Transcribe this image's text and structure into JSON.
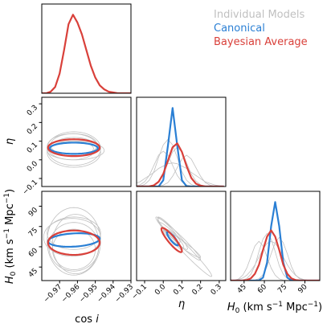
{
  "chart_data": {
    "type": "corner",
    "series": [
      {
        "name": "Individual Models",
        "color": "#c0c0c0"
      },
      {
        "name": "Canonical",
        "color": "#2a7fd4"
      },
      {
        "name": "Bayesian Average",
        "color": "#d9403a"
      }
    ],
    "parameters": [
      {
        "label": [
          "cos ",
          "i"
        ],
        "lim": [
          -0.98,
          -0.93
        ],
        "ticks": [
          {
            "value": -0.97,
            "label": "−0.97"
          },
          {
            "value": -0.96,
            "label": "−0.96"
          },
          {
            "value": -0.95,
            "label": "−0.95"
          },
          {
            "value": -0.94,
            "label": "−0.94"
          },
          {
            "value": -0.93,
            "label": "−0.93"
          }
        ]
      },
      {
        "label": [
          "η"
        ],
        "lim": [
          -0.143,
          0.335
        ],
        "ticks": [
          {
            "value": -0.1,
            "label": "−0.1"
          },
          {
            "value": 0,
            "label": "0.0"
          },
          0.1,
          0.2,
          0.3
        ]
      },
      {
        "label": [
          "H",
          "0",
          " (km s",
          "−1",
          " Mpc",
          "−1",
          ")"
        ],
        "lim": [
          35,
          101
        ],
        "ticks": [
          45,
          60,
          75,
          90
        ]
      }
    ],
    "marginals": [
      {
        "x": [
          -0.98,
          -0.9775,
          -0.975,
          -0.9725,
          -0.97,
          -0.9675,
          -0.965,
          -0.9625,
          -0.96,
          -0.9575,
          -0.955,
          -0.9525,
          -0.95,
          -0.9475,
          -0.945,
          -0.9425,
          -0.94,
          -0.9375,
          -0.935,
          -0.9325,
          -0.93
        ],
        "individual": [],
        "bayesian_average": [
          0,
          0,
          0.02,
          0.08,
          0.25,
          0.55,
          0.88,
          1.0,
          0.9,
          0.75,
          0.55,
          0.35,
          0.2,
          0.1,
          0.05,
          0.02,
          0.01,
          0,
          0,
          0,
          0
        ]
      },
      {
        "x": [
          -0.15,
          -0.125,
          -0.1,
          -0.075,
          -0.05,
          -0.025,
          0,
          0.025,
          0.05,
          0.075,
          0.1,
          0.125,
          0.15,
          0.175,
          0.2,
          0.225,
          0.25,
          0.275,
          0.3,
          0.325
        ],
        "individual": [
          [
            0.005,
            0.02,
            0.06,
            0.14,
            0.27,
            0.4,
            0.45,
            0.4,
            0.27,
            0.14,
            0.06,
            0.02,
            0.005,
            0,
            0,
            0,
            0,
            0,
            0,
            0
          ],
          [
            0,
            0.007,
            0.026,
            0.08,
            0.19,
            0.37,
            0.53,
            0.6,
            0.53,
            0.37,
            0.19,
            0.08,
            0.026,
            0.007,
            0,
            0,
            0,
            0,
            0,
            0
          ],
          [
            0,
            0,
            0,
            0.006,
            0.022,
            0.07,
            0.16,
            0.3,
            0.44,
            0.5,
            0.44,
            0.3,
            0.16,
            0.07,
            0.022,
            0.006,
            0,
            0,
            0,
            0
          ],
          [
            0,
            0,
            0,
            0,
            0,
            0.005,
            0.018,
            0.05,
            0.13,
            0.24,
            0.35,
            0.4,
            0.35,
            0.24,
            0.13,
            0.05,
            0.018,
            0.005,
            0,
            0
          ],
          [
            0.04,
            0.06,
            0.1,
            0.14,
            0.18,
            0.23,
            0.26,
            0.29,
            0.3,
            0.29,
            0.26,
            0.23,
            0.18,
            0.14,
            0.1,
            0.06,
            0.04,
            0.02,
            0.01,
            0.005
          ]
        ],
        "canonical": [
          0,
          0,
          0,
          0,
          0,
          0,
          0.08,
          0.52,
          1,
          0.52,
          0.08,
          0.003,
          0,
          0,
          0,
          0,
          0,
          0,
          0,
          0
        ],
        "bayesian_average": [
          0,
          0,
          0,
          0.002,
          0.015,
          0.06,
          0.16,
          0.33,
          0.5,
          0.55,
          0.44,
          0.26,
          0.11,
          0.036,
          0.01,
          0,
          0,
          0,
          0,
          0
        ]
      },
      {
        "x": [
          35,
          38,
          41,
          44,
          47,
          50,
          53,
          56,
          59,
          62,
          65,
          68,
          71,
          74,
          77,
          80,
          83,
          86,
          89,
          92,
          95,
          98,
          101
        ],
        "individual": [
          [
            0.001,
            0.005,
            0.022,
            0.068,
            0.16,
            0.3,
            0.44,
            0.5,
            0.44,
            0.3,
            0.16,
            0.068,
            0.022,
            0.005,
            0.001,
            0,
            0,
            0,
            0,
            0,
            0,
            0,
            0
          ],
          [
            0,
            0,
            0.001,
            0.007,
            0.026,
            0.08,
            0.19,
            0.37,
            0.53,
            0.6,
            0.53,
            0.37,
            0.19,
            0.08,
            0.026,
            0.007,
            0.001,
            0,
            0,
            0,
            0,
            0,
            0
          ],
          [
            0,
            0,
            0,
            0,
            0,
            0.001,
            0.006,
            0.024,
            0.074,
            0.18,
            0.34,
            0.48,
            0.55,
            0.48,
            0.34,
            0.18,
            0.074,
            0.024,
            0.006,
            0.001,
            0,
            0,
            0
          ],
          [
            0.002,
            0.006,
            0.014,
            0.033,
            0.068,
            0.125,
            0.2,
            0.3,
            0.4,
            0.475,
            0.5,
            0.475,
            0.4,
            0.3,
            0.2,
            0.125,
            0.068,
            0.033,
            0.014,
            0.006,
            0.002,
            0,
            0
          ]
        ],
        "canonical": [
          0,
          0,
          0,
          0,
          0,
          0,
          0,
          0.003,
          0.037,
          0.23,
          0.69,
          1,
          0.69,
          0.23,
          0.037,
          0.003,
          0,
          0,
          0,
          0,
          0,
          0,
          0
        ],
        "bayesian_average": [
          0,
          0,
          0,
          0.001,
          0.007,
          0.028,
          0.086,
          0.2,
          0.39,
          0.56,
          0.64,
          0.56,
          0.39,
          0.2,
          0.086,
          0.028,
          0.007,
          0.001,
          0,
          0,
          0,
          0,
          0
        ]
      }
    ],
    "joint": [
      {
        "individual": [
          {
            "center": [
              -0.962,
              0.06
            ],
            "sd": [
              0.015,
              0.09
            ],
            "corr": 0
          },
          {
            "center": [
              -0.963,
              0.07
            ],
            "sd": [
              0.014,
              0.07
            ],
            "corr": 0
          },
          {
            "center": [
              -0.961,
              0.05
            ],
            "sd": [
              0.016,
              0.05
            ],
            "corr": 0
          },
          {
            "center": [
              -0.962,
              0.08
            ],
            "sd": [
              0.013,
              0.06
            ],
            "corr": 0
          },
          {
            "center": [
              -0.962,
              0.04
            ],
            "sd": [
              0.015,
              0.08
            ],
            "corr": 0
          },
          {
            "center": [
              -0.963,
              0.06
            ],
            "sd": [
              0.012,
              0.04
            ],
            "corr": 0
          }
        ],
        "canonical": {
          "center": [
            -0.962,
            0.062
          ],
          "sd": [
            0.0135,
            0.03
          ],
          "corr": 0
        },
        "bayesian_average": {
          "center": [
            -0.962,
            0.065
          ],
          "sd": [
            0.0145,
            0.045
          ],
          "corr": 0
        }
      },
      {
        "individual": [
          {
            "center": [
              -0.962,
              64
            ],
            "sd": [
              0.015,
              25
            ],
            "corr": 0
          },
          {
            "center": [
              -0.962,
              60
            ],
            "sd": [
              0.014,
              18
            ],
            "corr": 0
          },
          {
            "center": [
              -0.963,
              67
            ],
            "sd": [
              0.016,
              14
            ],
            "corr": 0
          },
          {
            "center": [
              -0.961,
              62
            ],
            "sd": [
              0.013,
              22
            ],
            "corr": 0
          },
          {
            "center": [
              -0.962,
              70
            ],
            "sd": [
              0.015,
              12
            ],
            "corr": 0
          },
          {
            "center": [
              -0.962,
              58
            ],
            "sd": [
              0.012,
              15
            ],
            "corr": 0
          }
        ],
        "canonical": {
          "center": [
            -0.962,
            65
          ],
          "sd": [
            0.0145,
            5
          ],
          "corr": 0.2
        },
        "bayesian_average": {
          "center": [
            -0.962,
            63
          ],
          "sd": [
            0.0145,
            9
          ],
          "corr": 0
        }
      },
      {
        "individual": [
          {
            "center": [
              0.08,
              66
            ],
            "sd": [
              0.12,
              16
            ],
            "corr": -0.97
          },
          {
            "center": [
              0.05,
              70
            ],
            "sd": [
              0.08,
              12
            ],
            "corr": -0.95
          },
          {
            "center": [
              0.1,
              62
            ],
            "sd": [
              0.1,
              10
            ],
            "corr": -0.96
          },
          {
            "center": [
              0.03,
              72
            ],
            "sd": [
              0.06,
              9
            ],
            "corr": -0.93
          },
          {
            "center": [
              0.12,
              58
            ],
            "sd": [
              0.14,
              20
            ],
            "corr": -0.98
          },
          {
            "center": [
              0.06,
              66
            ],
            "sd": [
              0.05,
              7
            ],
            "corr": -0.9
          }
        ],
        "canonical": {
          "center": [
            0.05,
            66
          ],
          "sd": [
            0.03,
            5
          ],
          "corr": -0.85
        },
        "bayesian_average": {
          "center": [
            0.045,
            65
          ],
          "sd": [
            0.055,
            9
          ],
          "corr": -0.9
        }
      }
    ]
  }
}
